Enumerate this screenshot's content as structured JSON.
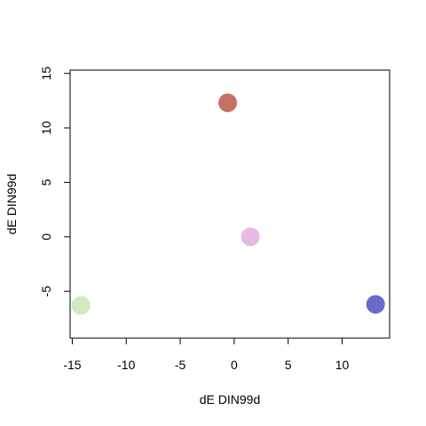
{
  "chart_data": {
    "type": "scatter",
    "title": "",
    "xlabel": "dE DIN99d",
    "ylabel": "dE DIN99d",
    "xlim": [
      -15.2,
      14.4
    ],
    "ylim": [
      -9.3,
      15.3
    ],
    "xticks": [
      -15,
      -10,
      -5,
      0,
      5,
      10
    ],
    "yticks": [
      -5,
      0,
      5,
      10,
      15
    ],
    "xtick_labels": [
      "-15",
      "-10",
      "-5",
      "0",
      "5",
      "10"
    ],
    "ytick_labels": [
      "-5",
      "0",
      "5",
      "10",
      "15"
    ],
    "grid": false,
    "legend": "none",
    "points": [
      {
        "x": -0.6,
        "y": 12.3,
        "color": "#c87064"
      },
      {
        "x": 1.5,
        "y": 0.0,
        "color": "#e8b9e2"
      },
      {
        "x": -14.2,
        "y": -6.3,
        "color": "#d4e9bd"
      },
      {
        "x": 13.1,
        "y": -6.2,
        "color": "#6a6acd"
      }
    ]
  }
}
